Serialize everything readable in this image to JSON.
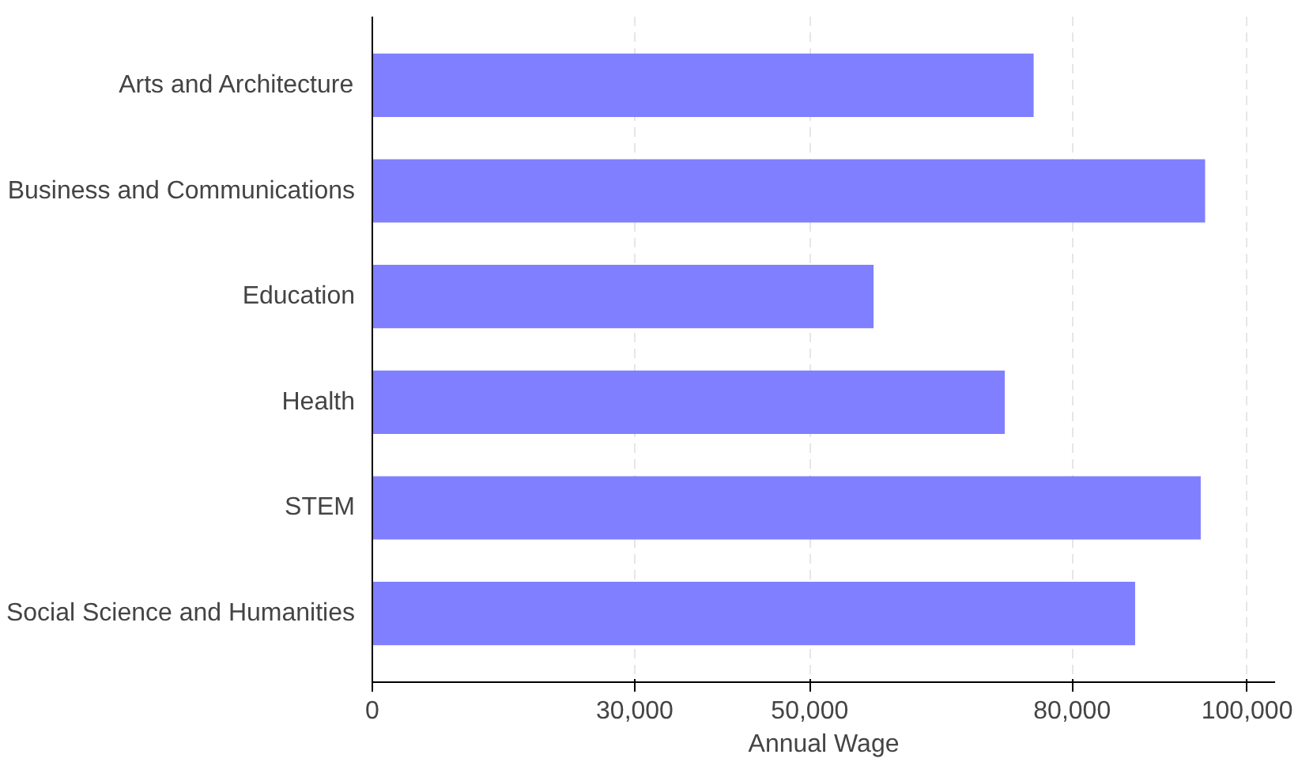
{
  "chart_data": {
    "type": "bar",
    "orientation": "horizontal",
    "xlabel": "Annual Wage",
    "categories": [
      "Arts and Architecture",
      "Business and Communications",
      "Education",
      "Health",
      "STEM",
      "Social Science and Humanities"
    ],
    "values": [
      75600,
      95200,
      57300,
      72300,
      94700,
      87200
    ],
    "color": "#7f7fff",
    "xlim": [
      0,
      103200
    ],
    "xticks": [
      0,
      {
        "value": 30000,
        "label": "30,000"
      },
      {
        "value": 50000,
        "label": "50,000"
      },
      {
        "value": 80000,
        "label": "80,000"
      },
      {
        "value": 100000,
        "label": "100,000"
      }
    ],
    "grid": "x",
    "line_style": "dashed"
  }
}
